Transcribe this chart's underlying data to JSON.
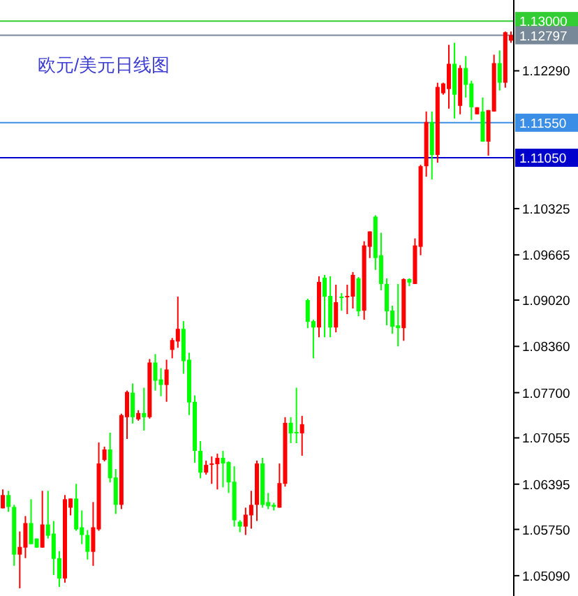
{
  "chart_data": {
    "type": "candlestick",
    "title": "欧元/美元日线图",
    "categories": [
      null,
      null,
      null,
      null,
      null,
      null,
      null,
      null,
      null,
      null,
      null,
      null,
      null,
      null,
      null,
      null,
      null,
      null,
      null,
      null,
      null,
      null,
      null,
      null,
      null,
      null,
      null,
      null,
      null,
      null,
      null,
      null,
      null,
      null,
      null,
      null,
      null,
      null,
      null,
      null,
      null,
      null,
      null,
      null,
      null,
      null,
      null,
      null,
      null,
      null,
      null,
      null,
      null,
      null,
      null,
      null,
      null,
      null,
      null,
      null,
      null,
      null,
      null,
      null,
      null,
      null,
      null,
      null,
      null,
      null,
      null,
      null,
      null,
      null,
      null,
      null,
      null,
      null,
      null,
      null,
      null,
      null,
      null,
      null,
      null,
      null,
      null,
      null,
      null,
      null,
      null
    ],
    "ohlc": [
      [
        1.0605,
        1.0632,
        1.0605,
        1.0624
      ],
      [
        1.0624,
        1.063,
        1.06,
        1.0607
      ],
      [
        1.0607,
        1.061,
        1.0523,
        1.0539
      ],
      [
        1.0539,
        1.0572,
        1.0491,
        1.055
      ],
      [
        1.0549,
        1.0594,
        1.0534,
        1.0584
      ],
      [
        1.0584,
        1.0618,
        1.0554,
        1.0554
      ],
      [
        1.0562,
        1.0562,
        1.0549,
        1.0549
      ],
      [
        1.0549,
        1.063,
        1.0549,
        1.0582
      ],
      [
        1.0582,
        1.063,
        1.0562,
        1.0566
      ],
      [
        1.0569,
        1.0587,
        1.051,
        1.0533
      ],
      [
        1.0534,
        1.0544,
        1.0493,
        1.0505
      ],
      [
        1.0505,
        1.0624,
        1.0499,
        1.0618
      ],
      [
        1.0606,
        1.0619,
        1.0595,
        1.0619
      ],
      [
        1.0619,
        1.064,
        1.0573,
        1.0575
      ],
      [
        1.0578,
        1.0602,
        1.0554,
        1.0567
      ],
      [
        1.0567,
        1.0574,
        1.0532,
        1.0543
      ],
      [
        1.0543,
        1.0614,
        1.0523,
        1.0578
      ],
      [
        1.0575,
        1.0699,
        1.0573,
        1.0669
      ],
      [
        1.0674,
        1.0693,
        1.0672,
        1.0689
      ],
      [
        1.0689,
        1.0713,
        1.0642,
        1.0648
      ],
      [
        1.0649,
        1.0661,
        1.0597,
        1.061
      ],
      [
        1.061,
        1.074,
        1.0604,
        1.0738
      ],
      [
        1.0735,
        1.0773,
        1.0704,
        1.0771
      ],
      [
        1.077,
        1.0783,
        1.0726,
        1.0735
      ],
      [
        1.0732,
        1.0745,
        1.073,
        1.0741
      ],
      [
        1.0741,
        1.0777,
        1.0716,
        1.0735
      ],
      [
        1.0735,
        1.0818,
        1.0733,
        1.0813
      ],
      [
        1.0813,
        1.0825,
        1.0773,
        1.0787
      ],
      [
        1.0789,
        1.0805,
        1.0765,
        1.0781
      ],
      [
        1.0781,
        1.0817,
        1.0757,
        1.0803
      ],
      [
        1.0831,
        1.0848,
        1.0819,
        1.0845
      ],
      [
        1.0843,
        1.0907,
        1.0834,
        1.0861
      ],
      [
        1.0861,
        1.0872,
        1.0797,
        1.0815
      ],
      [
        1.0817,
        1.0827,
        1.0738,
        1.0756
      ],
      [
        1.0757,
        1.0766,
        1.067,
        1.0687
      ],
      [
        1.0687,
        1.0701,
        1.0648,
        1.0656
      ],
      [
        1.0656,
        1.0673,
        1.0653,
        1.0667
      ],
      [
        1.0667,
        1.0679,
        1.064,
        1.0669
      ],
      [
        1.0668,
        1.0683,
        1.0632,
        1.0677
      ],
      [
        1.0677,
        1.0687,
        1.0635,
        1.0669
      ],
      [
        1.0671,
        1.0672,
        1.0627,
        1.0642
      ],
      [
        1.0643,
        1.0665,
        1.0579,
        1.0588
      ],
      [
        1.0586,
        1.0588,
        1.0571,
        1.0579
      ],
      [
        1.0579,
        1.0606,
        1.0567,
        1.0596
      ],
      [
        1.0595,
        1.063,
        1.0576,
        1.061
      ],
      [
        1.061,
        1.0673,
        1.0587,
        1.0669
      ],
      [
        1.0669,
        1.0677,
        1.0606,
        1.061
      ],
      [
        1.0614,
        1.0627,
        1.0604,
        1.0608
      ],
      [
        1.061,
        1.0613,
        1.0602,
        1.0607
      ],
      [
        1.0606,
        1.0669,
        1.0606,
        1.0641
      ],
      [
        1.064,
        1.0735,
        1.0636,
        1.0727
      ],
      [
        1.0727,
        1.0735,
        1.0698,
        1.0712
      ],
      [
        1.0714,
        1.0777,
        1.0698,
        1.0712
      ],
      [
        1.0712,
        1.0737,
        1.068,
        1.0725
      ],
      [
        1.0902,
        1.0904,
        1.0862,
        1.0871
      ],
      [
        1.0872,
        1.0874,
        1.0819,
        1.0863
      ],
      [
        1.0863,
        1.0936,
        1.0849,
        1.0928
      ],
      [
        1.0934,
        1.0938,
        1.0849,
        1.0907
      ],
      [
        1.0908,
        1.0936,
        1.0849,
        1.0863
      ],
      [
        1.0863,
        1.0924,
        1.0856,
        1.0899
      ],
      [
        1.0907,
        1.0912,
        1.0887,
        1.0906
      ],
      [
        1.0906,
        1.0924,
        1.0882,
        1.0908
      ],
      [
        1.0907,
        1.0942,
        1.089,
        1.0938
      ],
      [
        1.0933,
        1.0935,
        1.0879,
        1.0886
      ],
      [
        1.0887,
        1.0986,
        1.0874,
        1.098
      ],
      [
        1.0978,
        1.1,
        1.0962,
        1.1
      ],
      [
        1.1021,
        1.1023,
        1.0945,
        1.0962
      ],
      [
        1.0966,
        1.0998,
        1.0916,
        1.0925
      ],
      [
        1.0925,
        1.0933,
        1.0866,
        1.0886
      ],
      [
        1.0887,
        1.0894,
        1.0854,
        1.0864
      ],
      [
        1.0866,
        1.0925,
        1.0836,
        1.0862
      ],
      [
        1.0862,
        1.0933,
        1.0844,
        1.0932
      ],
      [
        1.0932,
        1.0933,
        1.0922,
        1.0927
      ],
      [
        1.0925,
        1.099,
        1.0925,
        1.098
      ],
      [
        1.0978,
        1.1095,
        1.0966,
        1.1093
      ],
      [
        1.1093,
        1.1171,
        1.1078,
        1.1156
      ],
      [
        1.1156,
        1.1171,
        1.1074,
        1.1109
      ],
      [
        1.1109,
        1.1212,
        1.1098,
        1.1206
      ],
      [
        1.1197,
        1.1212,
        1.1195,
        1.1211
      ],
      [
        1.1203,
        1.1266,
        1.1175,
        1.1239
      ],
      [
        1.1239,
        1.1269,
        1.1161,
        1.1195
      ],
      [
        1.1179,
        1.1237,
        1.1167,
        1.1233
      ],
      [
        1.1233,
        1.125,
        1.1191,
        1.1209
      ],
      [
        1.1211,
        1.1215,
        1.1159,
        1.1177
      ],
      [
        1.1167,
        1.1177,
        1.1167,
        1.1177
      ],
      [
        1.1171,
        1.1191,
        1.1128,
        1.1128
      ],
      [
        1.1128,
        1.1173,
        1.1108,
        1.1173
      ],
      [
        1.1171,
        1.1252,
        1.1171,
        1.124
      ],
      [
        1.124,
        1.1258,
        1.1201,
        1.1212
      ],
      [
        1.1212,
        1.1285,
        1.1205,
        1.1284
      ],
      [
        1.1272,
        1.1285,
        1.1269,
        1.128
      ]
    ],
    "colors": [
      "#ff0000",
      "#00ff00",
      "#00ff00",
      "#ff0000",
      "#ff0000",
      "#00ff00",
      "#00ff00",
      "#ff0000",
      "#00ff00",
      "#00ff00",
      "#00ff00",
      "#ff0000",
      "#ff0000",
      "#00ff00",
      "#00ff00",
      "#00ff00",
      "#ff0000",
      "#ff0000",
      "#ff0000",
      "#00ff00",
      "#00ff00",
      "#ff0000",
      "#ff0000",
      "#00ff00",
      "#ff0000",
      "#00ff00",
      "#ff0000",
      "#00ff00",
      "#00ff00",
      "#ff0000",
      "#ff0000",
      "#ff0000",
      "#00ff00",
      "#00ff00",
      "#00ff00",
      "#00ff00",
      "#ff0000",
      "#ff0000",
      "#ff0000",
      "#00ff00",
      "#00ff00",
      "#00ff00",
      "#00ff00",
      "#ff0000",
      "#ff0000",
      "#ff0000",
      "#00ff00",
      "#00ff00",
      "#00ff00",
      "#ff0000",
      "#ff0000",
      "#00ff00",
      "#00ff00",
      "#ff0000",
      "#00ff00",
      "#00ff00",
      "#ff0000",
      "#00ff00",
      "#00ff00",
      "#ff0000",
      "#00ff00",
      "#ff0000",
      "#ff0000",
      "#00ff00",
      "#ff0000",
      "#ff0000",
      "#00ff00",
      "#00ff00",
      "#00ff00",
      "#00ff00",
      "#00ff00",
      "#ff0000",
      "#00ff00",
      "#ff0000",
      "#ff0000",
      "#ff0000",
      "#00ff00",
      "#ff0000",
      "#ff0000",
      "#ff0000",
      "#00ff00",
      "#ff0000",
      "#00ff00",
      "#00ff00",
      "#ff0000",
      "#00ff00",
      "#ff0000",
      "#ff0000",
      "#00ff00",
      "#ff0000",
      "#ff0000"
    ],
    "ylim": [
      1.048,
      1.133
    ],
    "yticks": [
      {
        "value": 1.0509,
        "label": "1.05090"
      },
      {
        "value": 1.0575,
        "label": "1.05750"
      },
      {
        "value": 1.06395,
        "label": "1.06395"
      },
      {
        "value": 1.07055,
        "label": "1.07055"
      },
      {
        "value": 1.077,
        "label": "1.07700"
      },
      {
        "value": 1.0836,
        "label": "1.08360"
      },
      {
        "value": 1.0902,
        "label": "1.09020"
      },
      {
        "value": 1.09665,
        "label": "1.09665"
      },
      {
        "value": 1.10325,
        "label": "1.10325"
      },
      {
        "value": 1.1229,
        "label": "1.12290"
      }
    ],
    "ref_lines": [
      {
        "axis": "y",
        "value": 1.13,
        "label": "1.13000",
        "color": "#32cd32"
      },
      {
        "axis": "y",
        "value": 1.12797,
        "label": "1.12797",
        "color": "#778899"
      },
      {
        "axis": "y",
        "value": 1.1155,
        "label": "1.11550",
        "color": "#3a8ee6"
      },
      {
        "axis": "y",
        "value": 1.1105,
        "label": "1.11050",
        "color": "#0000cd"
      }
    ],
    "tick_labels": "y"
  }
}
